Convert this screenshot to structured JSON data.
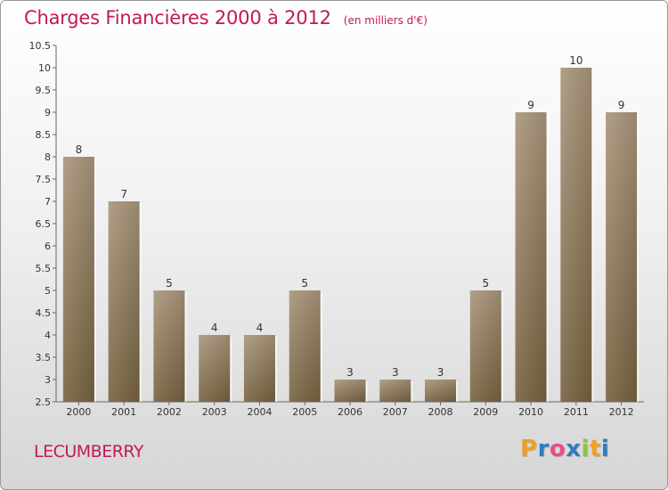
{
  "header": {
    "title": "Charges Financières 2000 à 2012",
    "unit": "(en milliers d'€)"
  },
  "commune": "LECUMBERRY",
  "brand": {
    "letters": [
      "P",
      "r",
      "o",
      "x",
      "i",
      "t",
      "i"
    ],
    "colors": [
      "#f0a020",
      "#2e7cc4",
      "#e94d8a",
      "#2e7cc4",
      "#8dc63f",
      "#f0a020",
      "#2e7cc4"
    ]
  },
  "chart_data": {
    "type": "bar",
    "title": "Charges Financières 2000 à 2012",
    "subtitle": "(en milliers d'€)",
    "categories": [
      "2000",
      "2001",
      "2002",
      "2003",
      "2004",
      "2005",
      "2006",
      "2007",
      "2008",
      "2009",
      "2010",
      "2011",
      "2012"
    ],
    "values": [
      8,
      7,
      5,
      4,
      4,
      5,
      3,
      3,
      3,
      5,
      9,
      10,
      9
    ],
    "ylim": [
      2.5,
      10.5
    ],
    "yticks": [
      "2.5",
      "3",
      "3.5",
      "4",
      "4.5",
      "5",
      "5.5",
      "6",
      "6.5",
      "7",
      "7.5",
      "8",
      "8.5",
      "9",
      "9.5",
      "10",
      "10.5"
    ],
    "grid": false,
    "bar_color": "#8c7658"
  }
}
